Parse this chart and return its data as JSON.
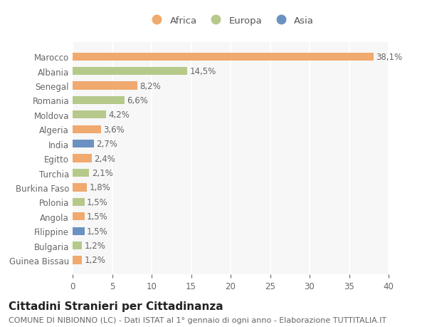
{
  "title": "Cittadini Stranieri per Cittadinanza",
  "subtitle": "COMUNE DI NIBIONNO (LC) - Dati ISTAT al 1° gennaio di ogni anno - Elaborazione TUTTITALIA.IT",
  "categories": [
    "Guinea Bissau",
    "Bulgaria",
    "Filippine",
    "Angola",
    "Polonia",
    "Burkina Faso",
    "Turchia",
    "Egitto",
    "India",
    "Algeria",
    "Moldova",
    "Romania",
    "Senegal",
    "Albania",
    "Marocco"
  ],
  "values": [
    1.2,
    1.2,
    1.5,
    1.5,
    1.5,
    1.8,
    2.1,
    2.4,
    2.7,
    3.6,
    4.2,
    6.6,
    8.2,
    14.5,
    38.1
  ],
  "labels": [
    "1,2%",
    "1,2%",
    "1,5%",
    "1,5%",
    "1,5%",
    "1,8%",
    "2,1%",
    "2,4%",
    "2,7%",
    "3,6%",
    "4,2%",
    "6,6%",
    "8,2%",
    "14,5%",
    "38,1%"
  ],
  "colors": [
    "#f0a96e",
    "#b5c98a",
    "#6b91c2",
    "#f0a96e",
    "#b5c98a",
    "#f0a96e",
    "#b5c98a",
    "#f0a96e",
    "#6b91c2",
    "#f0a96e",
    "#b5c98a",
    "#b5c98a",
    "#f0a96e",
    "#b5c98a",
    "#f0a96e"
  ],
  "continent_colors": {
    "Africa": "#f0a96e",
    "Europa": "#b5c98a",
    "Asia": "#6b91c2"
  },
  "xlim": [
    0,
    40
  ],
  "xticks": [
    0,
    5,
    10,
    15,
    20,
    25,
    30,
    35,
    40
  ],
  "background_color": "#ffffff",
  "plot_background": "#f7f7f7",
  "grid_color": "#ffffff",
  "bar_height": 0.55,
  "label_fontsize": 8.5,
  "tick_fontsize": 8.5,
  "title_fontsize": 11,
  "subtitle_fontsize": 8
}
